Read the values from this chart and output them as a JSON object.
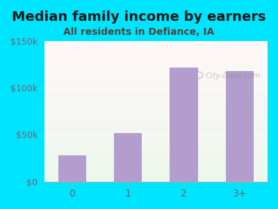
{
  "title": "Median family income by earners",
  "subtitle": "All residents in Defiance, IA",
  "categories": [
    "0",
    "1",
    "2",
    "3+"
  ],
  "values": [
    28000,
    52000,
    122000,
    118000
  ],
  "bar_color": "#b39dcc",
  "ylim": [
    0,
    150000
  ],
  "yticks": [
    0,
    50000,
    100000,
    150000
  ],
  "ytick_labels": [
    "$0",
    "$50k",
    "$100k",
    "$150k"
  ],
  "background_outer": "#00e5ff",
  "background_inner_top": "#e8f5e9",
  "background_inner_bottom": "#f0fff0",
  "title_color": "#1a1a1a",
  "subtitle_color": "#5d4037",
  "tick_color": "#7b5c6b",
  "title_fontsize": 14,
  "subtitle_fontsize": 10,
  "watermark": "City-Data.com"
}
